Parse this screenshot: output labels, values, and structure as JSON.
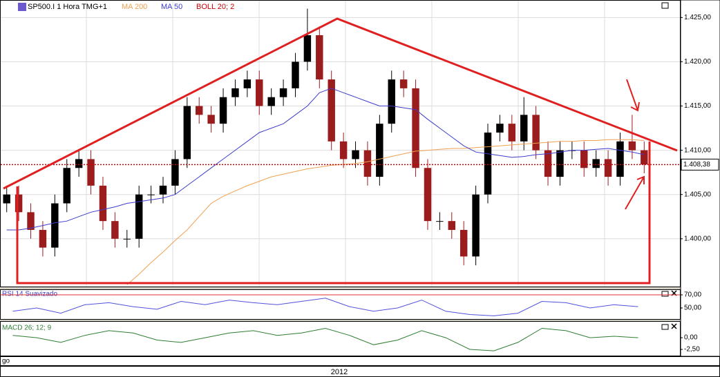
{
  "chart_data": [
    {
      "type": "candlestick",
      "title": "SP500.I 1 Hora TMG+1",
      "bollinger_label": "BOLL 20; 2",
      "x_label": "2012",
      "categories": [
        null,
        null,
        null,
        null,
        null,
        null,
        null,
        null,
        null,
        null,
        null,
        null,
        null,
        null,
        null,
        null,
        null,
        null,
        null,
        null,
        null,
        null,
        null,
        null,
        null,
        null,
        null,
        null,
        null,
        null,
        null,
        null,
        null,
        null,
        null,
        null,
        null,
        null,
        null,
        null,
        null,
        null,
        null,
        null,
        null,
        null,
        null,
        null,
        null,
        null,
        null,
        null,
        null,
        null
      ],
      "open": [
        1404,
        1405,
        1403,
        1401,
        1399,
        1404,
        1408,
        1409,
        1406,
        1402,
        1400,
        1400,
        1405,
        1405,
        1406,
        1409,
        1415,
        1414,
        1413,
        1416,
        1417,
        1418,
        1415,
        1416,
        1417,
        1420,
        1423,
        1418,
        1411,
        1409,
        1410,
        1407,
        1413,
        1418,
        1417,
        1408,
        1402,
        1402,
        1401,
        1398,
        1405,
        1412,
        1413,
        1411,
        1414,
        1410,
        1407,
        1410,
        1410,
        1408,
        1409,
        1407,
        1411,
        1410
      ],
      "high": [
        1406,
        1406,
        1404,
        1402,
        1405,
        1409,
        1410,
        1410,
        1407,
        1403,
        1401,
        1406,
        1406,
        1407,
        1410,
        1416,
        1416,
        1415,
        1417,
        1418,
        1419,
        1419,
        1417,
        1418,
        1421,
        1426,
        1424,
        1419,
        1412,
        1411,
        1411,
        1414,
        1419,
        1419,
        1418,
        1409,
        1403,
        1403,
        1402,
        1406,
        1413,
        1414,
        1414,
        1416,
        1415,
        1411,
        1411,
        1411,
        1411,
        1410,
        1410,
        1412,
        1414,
        1411
      ],
      "low": [
        1403,
        1402,
        1400,
        1398,
        1398,
        1403,
        1407,
        1405,
        1401,
        1399,
        1399,
        1399,
        1404,
        1404,
        1405,
        1408,
        1413,
        1412,
        1412,
        1415,
        1416,
        1414,
        1414,
        1415,
        1416,
        1419,
        1417,
        1410,
        1408,
        1408,
        1406,
        1406,
        1412,
        1416,
        1407,
        1401,
        1401,
        1400,
        1397,
        1397,
        1404,
        1411,
        1410,
        1410,
        1409,
        1406,
        1406,
        1409,
        1407,
        1407,
        1406,
        1406,
        1409,
        1407.4
      ],
      "close": [
        1405,
        1403,
        1401,
        1399,
        1404,
        1408,
        1409,
        1406,
        1402,
        1400,
        1400,
        1405,
        1405,
        1406,
        1409,
        1415,
        1414,
        1413,
        1416,
        1417,
        1418,
        1415,
        1416,
        1417,
        1420,
        1423,
        1418,
        1411,
        1409,
        1410,
        1407,
        1413,
        1418,
        1417,
        1408,
        1402,
        1402,
        1401,
        1398,
        1405,
        1412,
        1413,
        1411,
        1414,
        1410,
        1407,
        1410,
        1410,
        1408,
        1409,
        1407,
        1411,
        1410,
        1408.4
      ],
      "up_color": "#000000",
      "down_color": "#9b1c1c",
      "series": [
        {
          "name": "MA 200",
          "color": "#f0a050",
          "values": [
            null,
            null,
            null,
            null,
            null,
            null,
            null,
            null,
            null,
            null,
            1394.8,
            1396,
            1397.3,
            1398.5,
            1399.8,
            1401,
            1402.5,
            1404,
            1404.8,
            1405.4,
            1406,
            1406.5,
            1407,
            1407.3,
            1407.6,
            1407.9,
            1408.1,
            1408.3,
            1408.4,
            1408.5,
            1408.7,
            1409,
            1409.3,
            1409.6,
            1409.9,
            1410,
            1410.1,
            1410.2,
            1410.2,
            1410.3,
            1410.4,
            1410.5,
            1410.6,
            1410.7,
            1410.8,
            1410.9,
            1411,
            1411,
            1411.1,
            1411.1,
            1411.2,
            1411.2,
            1411.2,
            1411.1
          ]
        },
        {
          "name": "MA 50",
          "color": "#3c3ccc",
          "values": [
            1401,
            1401,
            1401.2,
            1401.5,
            1401.8,
            1402,
            1402.5,
            1403,
            1403.3,
            1403.6,
            1404,
            1404.2,
            1404.4,
            1404.6,
            1405,
            1406,
            1407,
            1408,
            1409,
            1410,
            1411,
            1412,
            1412.5,
            1413,
            1414,
            1415,
            1416.5,
            1417,
            1416.5,
            1416,
            1415.5,
            1415,
            1415,
            1414.8,
            1414.6,
            1413.5,
            1412.5,
            1411.5,
            1410.5,
            1409.8,
            1409.6,
            1409.4,
            1409.2,
            1409.3,
            1409.5,
            1409.6,
            1409.8,
            1410,
            1410,
            1410.1,
            1410.2,
            1410,
            1409.8,
            1409.5
          ]
        }
      ],
      "last_price": {
        "value": 1408.38,
        "label": "1.408,38"
      },
      "ylim": [
        1394.6,
        1426.9
      ],
      "yticks": [
        {
          "value": 1400,
          "label": "1.400,00"
        },
        {
          "value": 1405,
          "label": "1.405,00"
        },
        {
          "value": 1410,
          "label": "1.410,00"
        },
        {
          "value": 1415,
          "label": "1.415,00"
        },
        {
          "value": 1420,
          "label": "1.420,00"
        },
        {
          "value": 1425,
          "label": "1.425,00"
        }
      ],
      "grid": true
    },
    {
      "type": "line",
      "title": "RSI 14 Suavizado",
      "categories": [
        null,
        null,
        null,
        null,
        null,
        null,
        null,
        null,
        null,
        null,
        null,
        null,
        null,
        null,
        null,
        null,
        null,
        null,
        null,
        null,
        null,
        null,
        null,
        null,
        null,
        null,
        null
      ],
      "series": [
        {
          "color": "#5050dd",
          "values": [
            45,
            50,
            42,
            55,
            58,
            52,
            48,
            60,
            55,
            62,
            58,
            55,
            60,
            65,
            52,
            45,
            50,
            62,
            45,
            40,
            38,
            42,
            60,
            58,
            50,
            55,
            52
          ]
        }
      ],
      "ylim": [
        33.2,
        77.4
      ],
      "yticks": [
        {
          "value": 70,
          "label": "70,00"
        },
        {
          "value": 50,
          "label": "50,00"
        }
      ]
    },
    {
      "type": "line",
      "title": "MACD 26; 12; 9",
      "categories": [
        null,
        null,
        null,
        null,
        null,
        null,
        null,
        null,
        null,
        null,
        null,
        null,
        null,
        null,
        null,
        null,
        null,
        null,
        null,
        null,
        null,
        null,
        null,
        null,
        null,
        null,
        null
      ],
      "series": [
        {
          "color": "#2e7d32",
          "values": [
            0.5,
            0,
            -1,
            0.5,
            1.5,
            1,
            -0.5,
            -1,
            0,
            1,
            1.5,
            0.5,
            1,
            2,
            0.5,
            -1.5,
            -0.5,
            1.5,
            0,
            -2.5,
            -2.8,
            -1,
            2,
            1.5,
            0,
            0.3,
            0
          ]
        }
      ],
      "ylim": [
        -3.82,
        3.4
      ],
      "yticks": [
        {
          "value": 0,
          "label": "0,00"
        },
        {
          "value": -2.5,
          "label": "-2,50"
        }
      ]
    }
  ]
}
